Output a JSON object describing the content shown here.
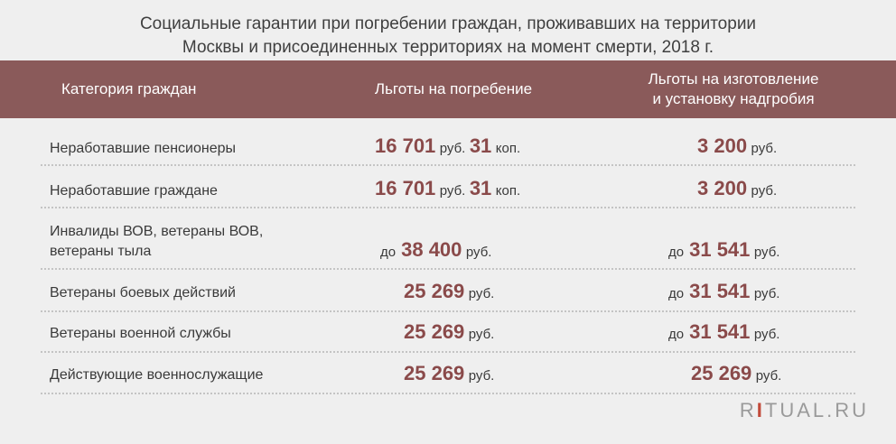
{
  "title": {
    "line1": "Социальные гарантии при погребении граждан, проживавших на территории",
    "line2": "Москвы и присоединенных территориях на момент смерти, 2018 г."
  },
  "header": {
    "col1": "Категория граждан",
    "col2": "Льготы на погребение",
    "col3_line1": "Льготы на изготовление",
    "col3_line2": "и установку надгробия"
  },
  "rows": [
    {
      "category": "Неработавшие пенсионеры",
      "burial": {
        "prefix": "",
        "amount": "16 701",
        "unit": "руб.",
        "kop": "31",
        "kop_unit": "коп."
      },
      "tomb": {
        "prefix": "",
        "amount": "3 200",
        "unit": "руб."
      }
    },
    {
      "category": "Неработавшие граждане",
      "burial": {
        "prefix": "",
        "amount": "16 701",
        "unit": "руб.",
        "kop": "31",
        "kop_unit": "коп."
      },
      "tomb": {
        "prefix": "",
        "amount": "3 200",
        "unit": "руб."
      }
    },
    {
      "category_line1": "Инвалиды ВОВ, ветераны ВОВ,",
      "category_line2": "ветераны тыла",
      "burial": {
        "prefix": "до",
        "amount": "38 400",
        "unit": "руб."
      },
      "tomb": {
        "prefix": "до",
        "amount": "31 541",
        "unit": "руб."
      }
    },
    {
      "category": "Ветераны боевых действий",
      "burial": {
        "prefix": "",
        "amount": "25 269",
        "unit": "руб."
      },
      "tomb": {
        "prefix": "до",
        "amount": "31 541",
        "unit": "руб."
      }
    },
    {
      "category": "Ветераны военной службы",
      "burial": {
        "prefix": "",
        "amount": "25 269",
        "unit": "руб."
      },
      "tomb": {
        "prefix": "до",
        "amount": "31 541",
        "unit": "руб."
      }
    },
    {
      "category": "Действующие военнослужащие",
      "burial": {
        "prefix": "",
        "amount": "25 269",
        "unit": "руб."
      },
      "tomb": {
        "prefix": "",
        "amount": "25 269",
        "unit": "руб."
      }
    }
  ],
  "brand": {
    "r": "R",
    "i": "I",
    "rest": "TUAL.RU"
  }
}
